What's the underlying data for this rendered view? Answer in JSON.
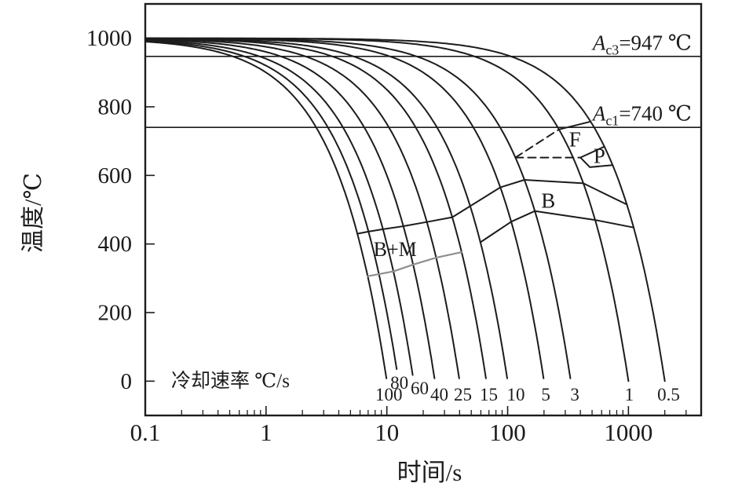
{
  "figure": {
    "background": "#ffffff",
    "ink_color": "#1c1c1c",
    "gray_line_color": "#8f8f8f"
  },
  "chart_data": {
    "type": "line",
    "title": "",
    "xlabel": "时间/s",
    "ylabel": "温度/℃",
    "x_scale": "log",
    "xlim": [
      0.1,
      4000
    ],
    "ylim": [
      -100,
      1100
    ],
    "grid": false,
    "x_ticks": [
      {
        "value": 0.1,
        "label": "0.1"
      },
      {
        "value": 1,
        "label": "1"
      },
      {
        "value": 10,
        "label": "10"
      },
      {
        "value": 100,
        "label": "100"
      },
      {
        "value": 1000,
        "label": "1000"
      }
    ],
    "y_ticks": [
      {
        "value": 0,
        "label": "0"
      },
      {
        "value": 200,
        "label": "200"
      },
      {
        "value": 400,
        "label": "400"
      },
      {
        "value": 600,
        "label": "600"
      },
      {
        "value": 800,
        "label": "800"
      },
      {
        "value": 1000,
        "label": "1000"
      }
    ],
    "reference_lines": [
      {
        "id": "Ac3",
        "temperature": 947,
        "label_var": "A",
        "label_sub": "c3",
        "label_rest": "=947 ℃"
      },
      {
        "id": "Ac1",
        "temperature": 740,
        "label_var": "A",
        "label_sub": "c1",
        "label_rest": "=740 ℃"
      }
    ],
    "cooling_rate_caption": {
      "text": "冷却速率 ℃/s",
      "t": 0.164,
      "T": -17
    },
    "cooling_curves": {
      "model": "T(t) = 1000 - rate * t  (T in °C, t in s)",
      "start_temperature": 1000,
      "start_time": 0.1,
      "series": [
        {
          "rate": 100,
          "label": "100",
          "label_t": 10.4,
          "label_T": -38,
          "end_T": 8
        },
        {
          "rate": 80,
          "label": "80",
          "label_t": 12.7,
          "label_T": -4,
          "end_T": 35
        },
        {
          "rate": 60,
          "label": "60",
          "label_t": 18.7,
          "label_T": -20,
          "end_T": 18
        },
        {
          "rate": 40,
          "label": "40",
          "label_t": 27.2,
          "label_T": -38,
          "end_T": 8
        },
        {
          "rate": 25,
          "label": "25",
          "label_t": 42.6,
          "label_T": -38,
          "end_T": 8
        },
        {
          "rate": 15,
          "label": "15",
          "label_t": 69.8,
          "label_T": -38,
          "end_T": 8
        },
        {
          "rate": 10,
          "label": "10",
          "label_t": 117,
          "label_T": -38,
          "end_T": 8
        },
        {
          "rate": 5,
          "label": "5",
          "label_t": 207,
          "label_T": -38,
          "end_T": 8
        },
        {
          "rate": 3,
          "label": "3",
          "label_t": 360,
          "label_T": -38,
          "end_T": 8
        },
        {
          "rate": 1,
          "label": "1",
          "label_t": 1015,
          "label_T": -38,
          "end_T": 0
        },
        {
          "rate": 0.5,
          "label": "0.5",
          "label_t": 2150,
          "label_T": -38,
          "end_T": 0
        }
      ]
    },
    "phase_boundaries": [
      {
        "id": "ferrite-start-dashed",
        "style": "dashed",
        "points": [
          [
            116,
            652
          ],
          [
            266,
            734
          ]
        ]
      },
      {
        "id": "ferrite-start-solid",
        "style": "solid",
        "points": [
          [
            266,
            734
          ],
          [
            486,
            757
          ]
        ]
      },
      {
        "id": "pearlite-left-dashed",
        "style": "dashed",
        "points": [
          [
            116,
            652
          ],
          [
            400,
            652
          ]
        ]
      },
      {
        "id": "pearlite-top",
        "style": "solid",
        "points": [
          [
            400,
            652
          ],
          [
            632,
            684
          ]
        ]
      },
      {
        "id": "pearlite-bottom",
        "style": "solid",
        "points": [
          [
            400,
            652
          ],
          [
            480,
            624
          ],
          [
            740,
            630
          ]
        ]
      },
      {
        "id": "bainite-top",
        "style": "solid",
        "points": [
          [
            5.7,
            430
          ],
          [
            7.05,
            436
          ],
          [
            9.28,
            443
          ],
          [
            13.7,
            452
          ],
          [
            21.4,
            464
          ],
          [
            34.8,
            478
          ],
          [
            87,
            565
          ],
          [
            137.7,
            587
          ],
          [
            423,
            577
          ],
          [
            970,
            515
          ]
        ]
      },
      {
        "id": "bainite-bottom",
        "style": "solid",
        "points": [
          [
            59.5,
            405
          ],
          [
            107,
            465
          ],
          [
            168,
            496
          ],
          [
            530,
            470
          ],
          [
            1104,
            448
          ]
        ]
      },
      {
        "id": "bainite-martensite-gray",
        "style": "gray",
        "points": [
          [
            6.94,
            306
          ],
          [
            8.6,
            312
          ],
          [
            11.3,
            320
          ],
          [
            16.5,
            340
          ],
          [
            25.6,
            360
          ],
          [
            41.6,
            376
          ]
        ]
      }
    ],
    "region_labels": [
      {
        "text": "F",
        "t": 361,
        "T": 705
      },
      {
        "text": "P",
        "t": 575,
        "T": 657
      },
      {
        "text": "B",
        "t": 217,
        "T": 526
      },
      {
        "text": "B+M",
        "t": 11.7,
        "T": 385
      }
    ]
  }
}
